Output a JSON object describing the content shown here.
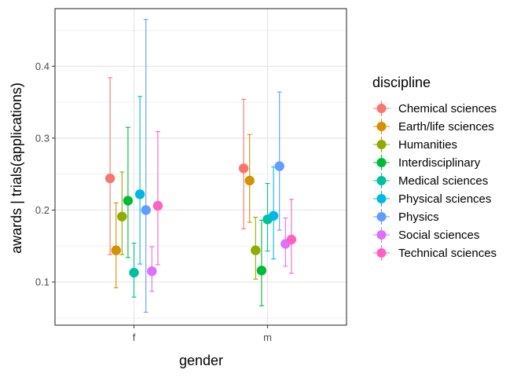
{
  "chart_data": {
    "type": "scatter",
    "xlabel": "gender",
    "ylabel": "awards | trials(applications)",
    "categories": [
      "f",
      "m"
    ],
    "yticks": [
      0.1,
      0.2,
      0.3,
      0.4
    ],
    "ylim": [
      0.04,
      0.48
    ],
    "grid": true,
    "legend": {
      "title": "discipline",
      "position": "right"
    },
    "series": [
      {
        "name": "Chemical sciences",
        "color": "#F8766D",
        "points": [
          {
            "x": "f",
            "y": 0.244,
            "lower": 0.138,
            "upper": 0.384
          },
          {
            "x": "m",
            "y": 0.258,
            "lower": 0.174,
            "upper": 0.354
          }
        ]
      },
      {
        "name": "Earth/life sciences",
        "color": "#D39200",
        "points": [
          {
            "x": "f",
            "y": 0.144,
            "lower": 0.092,
            "upper": 0.21
          },
          {
            "x": "m",
            "y": 0.241,
            "lower": 0.183,
            "upper": 0.305
          }
        ]
      },
      {
        "name": "Humanities",
        "color": "#93AA00",
        "points": [
          {
            "x": "f",
            "y": 0.191,
            "lower": 0.138,
            "upper": 0.253
          },
          {
            "x": "m",
            "y": 0.144,
            "lower": 0.104,
            "upper": 0.19
          }
        ]
      },
      {
        "name": "Interdisciplinary",
        "color": "#00BA38",
        "points": [
          {
            "x": "f",
            "y": 0.213,
            "lower": 0.134,
            "upper": 0.315
          },
          {
            "x": "m",
            "y": 0.116,
            "lower": 0.067,
            "upper": 0.186
          }
        ]
      },
      {
        "name": "Medical sciences",
        "color": "#00C19F",
        "points": [
          {
            "x": "f",
            "y": 0.113,
            "lower": 0.079,
            "upper": 0.154
          },
          {
            "x": "m",
            "y": 0.187,
            "lower": 0.143,
            "upper": 0.237
          }
        ]
      },
      {
        "name": "Physical sciences",
        "color": "#00B9E3",
        "points": [
          {
            "x": "f",
            "y": 0.222,
            "lower": 0.125,
            "upper": 0.358
          },
          {
            "x": "m",
            "y": 0.192,
            "lower": 0.132,
            "upper": 0.26
          }
        ]
      },
      {
        "name": "Physics",
        "color": "#619CFF",
        "points": [
          {
            "x": "f",
            "y": 0.2,
            "lower": 0.058,
            "upper": 0.465
          },
          {
            "x": "m",
            "y": 0.261,
            "lower": 0.172,
            "upper": 0.364
          }
        ]
      },
      {
        "name": "Social sciences",
        "color": "#DB72FB",
        "points": [
          {
            "x": "f",
            "y": 0.115,
            "lower": 0.087,
            "upper": 0.149
          },
          {
            "x": "m",
            "y": 0.153,
            "lower": 0.122,
            "upper": 0.189
          }
        ]
      },
      {
        "name": "Technical sciences",
        "color": "#FF61C3",
        "points": [
          {
            "x": "f",
            "y": 0.206,
            "lower": 0.124,
            "upper": 0.309
          },
          {
            "x": "m",
            "y": 0.159,
            "lower": 0.112,
            "upper": 0.215
          }
        ]
      }
    ]
  }
}
